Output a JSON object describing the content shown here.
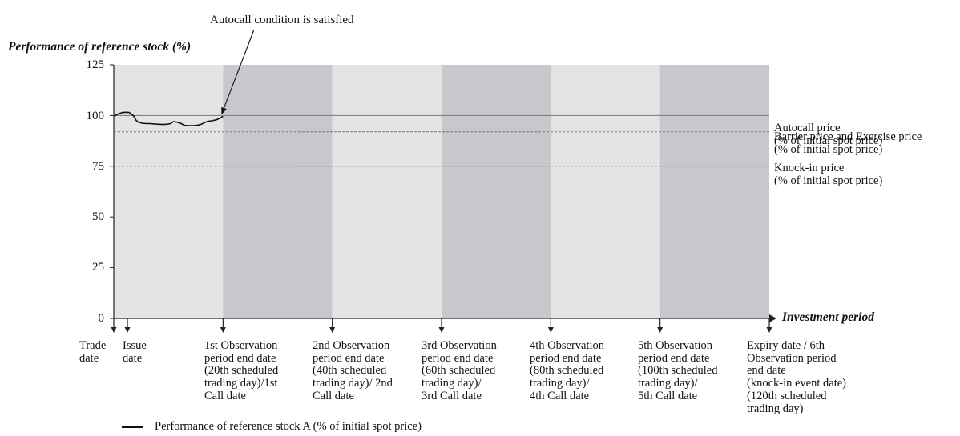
{
  "chart_data": {
    "type": "line",
    "title": "",
    "ylabel": "Performance of reference stock (%)",
    "xlabel": "Investment period",
    "ylim": [
      0,
      125
    ],
    "yticks": [
      0,
      25,
      50,
      75,
      100,
      125
    ],
    "grid": false,
    "annotation": "Autocall condition is satisfied",
    "periods": [
      {
        "name": "1st observation period",
        "start_day": 0,
        "end_day": 20,
        "shade": "#e4e4e4"
      },
      {
        "name": "2nd observation period",
        "start_day": 20,
        "end_day": 40,
        "shade": "#c6c8cb"
      },
      {
        "name": "3rd observation period",
        "start_day": 40,
        "end_day": 60,
        "shade": "#e4e4e4"
      },
      {
        "name": "4th observation period",
        "start_day": 60,
        "end_day": 80,
        "shade": "#c6c8cb"
      },
      {
        "name": "5th observation period",
        "start_day": 80,
        "end_day": 100,
        "shade": "#e4e4e4"
      },
      {
        "name": "6th observation period",
        "start_day": 100,
        "end_day": 120,
        "shade": "#c6c8cb"
      }
    ],
    "levels": [
      {
        "value": 100,
        "label": "Autocall price\n(% of initial spot price)",
        "style": "solid"
      },
      {
        "value": 92,
        "label": "Barrier price and Exercise price\n(% of initial spot price)",
        "style": "dashed"
      },
      {
        "value": 75,
        "label": "Knock-in price\n(% of initial spot price)",
        "style": "dashed"
      }
    ],
    "date_markers": [
      {
        "day": 0,
        "label": "Trade\ndate"
      },
      {
        "day": 2.5,
        "label": "Issue\ndate"
      },
      {
        "day": 20,
        "label": "1st Observation\nperiod end date\n(20th scheduled\ntrading day)/1st\nCall date"
      },
      {
        "day": 40,
        "label": "2nd Observation\nperiod end date\n(40th scheduled\ntrading day)/ 2nd\nCall date"
      },
      {
        "day": 60,
        "label": "3rd Observation\nperiod end date\n(60th scheduled\ntrading day)/\n3rd Call date"
      },
      {
        "day": 80,
        "label": "4th Observation\nperiod end date\n(80th scheduled\ntrading day)/\n4th Call date"
      },
      {
        "day": 100,
        "label": "5th Observation\nperiod end date\n(100th scheduled\ntrading day)/\n5th Call date"
      },
      {
        "day": 120,
        "label": "Expiry date / 6th\nObservation period\nend date\n(knock-in event date)\n(120th scheduled\ntrading day)"
      }
    ],
    "series": [
      {
        "name": "Performance of reference stock A (% of initial spot price)",
        "color": "#111111",
        "x": [
          0,
          0.5,
          1,
          1.6,
          2.2,
          2.8,
          3.2,
          3.7,
          4.1,
          4.6,
          5.2,
          6,
          6.8,
          7.5,
          8.3,
          9,
          9.7,
          10.4,
          10.9,
          11.5,
          12.2,
          12.9,
          13.6,
          14.3,
          14.9,
          15.5,
          16.1,
          16.7,
          17.3,
          17.9,
          18.5,
          19,
          19.6,
          20
        ],
        "y": [
          99.6,
          100.3,
          101,
          101.5,
          101.6,
          101.5,
          100.8,
          99.6,
          97.6,
          96.6,
          96.2,
          96,
          96,
          95.8,
          95.7,
          95.6,
          95.7,
          96,
          97,
          96.8,
          96.2,
          95.2,
          95,
          95,
          95.1,
          95.3,
          95.8,
          96.6,
          97.2,
          97.4,
          97.7,
          98.1,
          99,
          99.6
        ]
      }
    ],
    "legend_position": "bottom-left"
  }
}
